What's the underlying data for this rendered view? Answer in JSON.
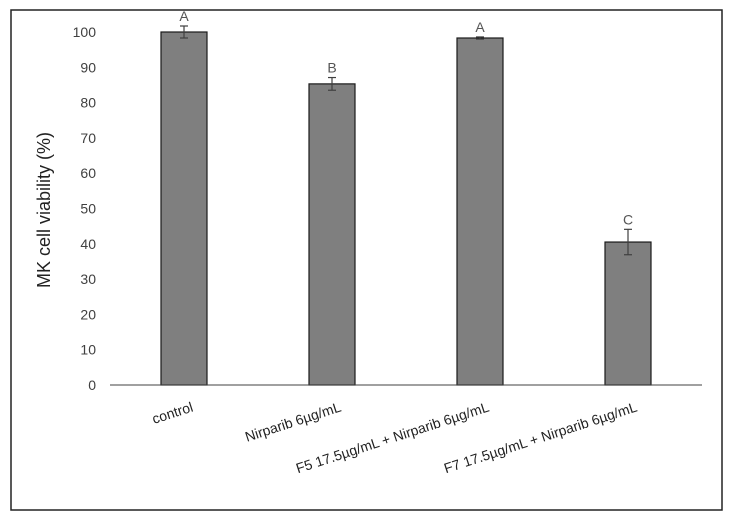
{
  "chart_data": {
    "type": "bar",
    "title": "",
    "xlabel": "",
    "ylabel": "MK cell viability (%)",
    "ylim": [
      0,
      100
    ],
    "yticks": [
      0,
      10,
      20,
      30,
      40,
      50,
      60,
      70,
      80,
      90,
      100
    ],
    "grid": false,
    "legend": "none",
    "categories": [
      "control",
      "Nirparib 6µg/mL",
      "F5 17.5µg/mL + Nirparib 6µg/mL",
      "F7 17.5µg/mL + Nirparib 6µg/mL"
    ],
    "values": [
      100,
      85.3,
      98.3,
      40.5
    ],
    "errors": [
      1.7,
      1.8,
      0.3,
      3.6
    ],
    "annotations": [
      "A",
      "B",
      "A",
      "C"
    ],
    "colors": {
      "bar": "#7f7f7f",
      "bar_edge": "#1a1a1a",
      "error_bar": "#404040",
      "axis": "#404040"
    }
  }
}
